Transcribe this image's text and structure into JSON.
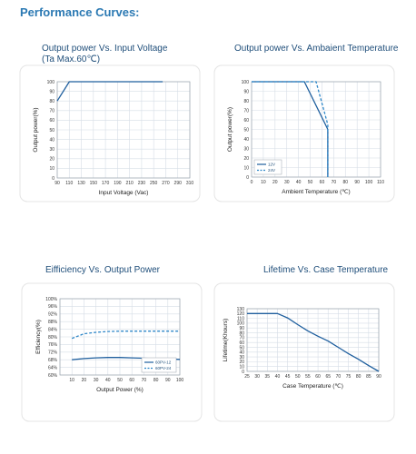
{
  "heading": "Performance Curves:",
  "chart_data": [
    {
      "type": "line",
      "title_lines": [
        "Output power Vs. Input Voltage",
        "(Ta Max.60℃)"
      ],
      "xlabel": "Input Voltage (Vac)",
      "ylabel": "Output power(%)",
      "xlim": [
        90,
        310
      ],
      "ylim": [
        0,
        100
      ],
      "x_ticks": [
        "90",
        "110",
        "130",
        "150",
        "170",
        "190",
        "210",
        "230",
        "250",
        "270",
        "290",
        "310"
      ],
      "y_ticks": [
        "0",
        "10",
        "20",
        "30",
        "40",
        "50",
        "60",
        "70",
        "80",
        "90",
        "100"
      ],
      "grid": true,
      "series": [
        {
          "color": "#1f5f9e",
          "dashed": false,
          "x": [
            90,
            110,
            265
          ],
          "y": [
            80,
            100,
            100
          ]
        }
      ]
    },
    {
      "type": "line",
      "title_lines": [
        "Output power Vs. Ambaient Temperature"
      ],
      "xlabel": "Ambient Temperature (℃)",
      "ylabel": "Output power(%)",
      "xlim": [
        0,
        110
      ],
      "ylim": [
        0,
        100
      ],
      "x_ticks": [
        "0",
        "10",
        "20",
        "30",
        "40",
        "50",
        "60",
        "70",
        "80",
        "90",
        "100",
        "110"
      ],
      "y_ticks": [
        "0",
        "10",
        "20",
        "30",
        "40",
        "50",
        "60",
        "70",
        "80",
        "90",
        "100"
      ],
      "grid": true,
      "legend_position": "bottom-left",
      "series": [
        {
          "name": "12V",
          "color": "#1f5f9e",
          "dashed": false,
          "x": [
            0,
            45,
            65,
            65
          ],
          "y": [
            100,
            100,
            50,
            0
          ]
        },
        {
          "name": "24V",
          "color": "#2e87c8",
          "dashed": true,
          "x": [
            0,
            55,
            65,
            65
          ],
          "y": [
            100,
            100,
            55,
            0
          ]
        }
      ]
    },
    {
      "type": "line",
      "title_lines": [
        "Eifficiency Vs. Output Power"
      ],
      "xlabel": "Output Power (%)",
      "ylabel": "Efficiency(%)",
      "xlim": [
        0,
        100
      ],
      "ylim": [
        60,
        100
      ],
      "x_ticks": [
        "10",
        "20",
        "30",
        "40",
        "50",
        "60",
        "70",
        "80",
        "90",
        "100"
      ],
      "y_ticks": [
        "60%",
        "64%",
        "68%",
        "72%",
        "76%",
        "80%",
        "84%",
        "88%",
        "92%",
        "96%",
        "100%"
      ],
      "grid": true,
      "legend_position": "bottom-right",
      "series": [
        {
          "name": "60PV-12",
          "color": "#1f5f9e",
          "dashed": false,
          "x": [
            10,
            20,
            30,
            40,
            50,
            60,
            70,
            80,
            90,
            100
          ],
          "y": [
            68.0,
            68.6,
            69.0,
            69.2,
            69.2,
            69.0,
            68.8,
            68.6,
            68.4,
            68.2
          ]
        },
        {
          "name": "60PV-24",
          "color": "#2e87c8",
          "dashed": true,
          "x": [
            10,
            20,
            30,
            40,
            50,
            60,
            70,
            80,
            90,
            100
          ],
          "y": [
            79.2,
            81.6,
            82.4,
            82.8,
            83.0,
            83.0,
            83.0,
            83.0,
            83.0,
            83.0
          ]
        }
      ]
    },
    {
      "type": "line",
      "title_lines": [
        "Lifetime Vs. Case Temperature"
      ],
      "xlabel": "Case Temperature (℃)",
      "ylabel": "Lifetime(Khours)",
      "xlim": [
        25,
        90
      ],
      "ylim": [
        0,
        130
      ],
      "x_ticks": [
        "25",
        "30",
        "35",
        "40",
        "45",
        "50",
        "55",
        "60",
        "65",
        "70",
        "75",
        "80",
        "85",
        "90"
      ],
      "y_ticks": [
        "0",
        "10",
        "20",
        "30",
        "40",
        "50",
        "60",
        "70",
        "80",
        "90",
        "100",
        "110",
        "120",
        "130"
      ],
      "grid": true,
      "series": [
        {
          "color": "#1f5f9e",
          "dashed": false,
          "x": [
            25,
            40,
            45,
            50,
            55,
            60,
            65,
            70,
            75,
            80,
            85,
            90
          ],
          "y": [
            120,
            120,
            111,
            97,
            84,
            73,
            63,
            50,
            37,
            25,
            12,
            0
          ]
        }
      ]
    }
  ]
}
